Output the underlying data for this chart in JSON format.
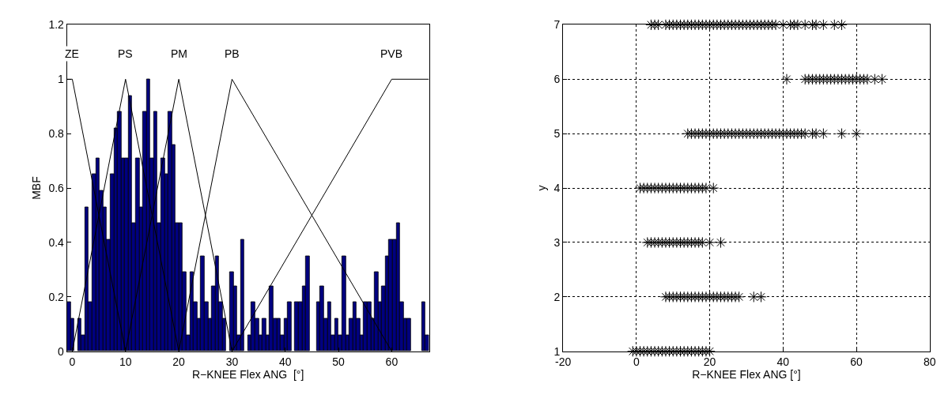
{
  "chart_data": [
    {
      "type": "histogram",
      "xlabel": "R−KNEE Flex ANG  [°]",
      "ylabel": "MBF",
      "color": "#000080",
      "bins": [
        -1,
        -0.32,
        0.36,
        1.04,
        1.72,
        2.4,
        3.08,
        3.76,
        4.44,
        5.12,
        5.8,
        6.48,
        7.16,
        7.84,
        8.52,
        9.2,
        9.88,
        10.56,
        11.24,
        11.92,
        12.6,
        13.28,
        13.96,
        14.64,
        15.32,
        16,
        16.68,
        17.36,
        18.04,
        18.72,
        19.4,
        20.08,
        20.76,
        21.44,
        22.12,
        22.8,
        23.48,
        24.16,
        24.84,
        25.52,
        26.2,
        26.88,
        27.56,
        28.24,
        28.92,
        29.6,
        30.28,
        30.96,
        31.64,
        32.32,
        33,
        33.68,
        34.36,
        35.04,
        35.72,
        36.4,
        37.08,
        37.76,
        38.44,
        39.12,
        39.8,
        40.48,
        41.16,
        41.84,
        42.52,
        43.2,
        43.88,
        44.56,
        45.24,
        45.92,
        46.6,
        47.28,
        47.96,
        48.64,
        49.32,
        50,
        50.68,
        51.36,
        52.04,
        52.72,
        53.4,
        54.08,
        54.76,
        55.44,
        56.12,
        56.8,
        57.48,
        58.16,
        58.84,
        59.52,
        60.2,
        60.88,
        61.56,
        62.24,
        62.92,
        63.6,
        64.28,
        64.96,
        65.64,
        66.32,
        67
      ],
      "values": [
        0.18,
        0.12,
        0,
        0.12,
        0.06,
        0.53,
        0.18,
        0.65,
        0.71,
        0.59,
        0.53,
        0.41,
        0.65,
        0.82,
        0.88,
        0.71,
        0.71,
        0.94,
        0.47,
        0.71,
        0.53,
        0.88,
        1,
        0.71,
        0.88,
        0.47,
        0.71,
        0.65,
        0.88,
        0.76,
        0.47,
        0.47,
        0.29,
        0.06,
        0.29,
        0.18,
        0.12,
        0.35,
        0.18,
        0.12,
        0.24,
        0.35,
        0.18,
        0.12,
        0,
        0.29,
        0.24,
        0.06,
        0.41,
        0,
        0.06,
        0.18,
        0.12,
        0.06,
        0.12,
        0.06,
        0.24,
        0.12,
        0.12,
        0.06,
        0.12,
        0.18,
        0,
        0.18,
        0.18,
        0.24,
        0.35,
        0,
        0,
        0.18,
        0.24,
        0.12,
        0.18,
        0.06,
        0.12,
        0.06,
        0.35,
        0.06,
        0.12,
        0.18,
        0.12,
        0.06,
        0.18,
        0.18,
        0.12,
        0.29,
        0.18,
        0.24,
        0.35,
        0.41,
        0.41,
        0.47,
        0.18,
        0.12,
        0.12,
        0,
        0,
        0,
        0.18,
        0.06
      ],
      "series": [
        {
          "name": "ZE",
          "type": "line",
          "color": "#000000",
          "x": [
            -1,
            0,
            10
          ],
          "values": [
            1,
            1,
            0
          ]
        },
        {
          "name": "PS",
          "type": "line",
          "color": "#000000",
          "x": [
            0,
            10,
            20
          ],
          "values": [
            0,
            1,
            0
          ]
        },
        {
          "name": "PM",
          "type": "line",
          "color": "#000000",
          "x": [
            10,
            20,
            30
          ],
          "values": [
            0,
            1,
            0
          ]
        },
        {
          "name": "PB",
          "type": "line",
          "color": "#000000",
          "x": [
            20,
            30,
            60
          ],
          "values": [
            0,
            1,
            0
          ]
        },
        {
          "name": "PVB",
          "type": "line",
          "color": "#000000",
          "x": [
            30,
            60,
            67
          ],
          "values": [
            0,
            1,
            1
          ]
        }
      ],
      "xlim": [
        -1,
        67
      ],
      "xticks": [
        0,
        10,
        20,
        30,
        40,
        50,
        60
      ],
      "ylim": [
        0,
        1.2
      ],
      "yticks": [
        0,
        0.2,
        0.4,
        0.6,
        0.8,
        1,
        1.2
      ],
      "grid": false
    },
    {
      "type": "scatter",
      "xlabel": "R−KNEE Flex ANG [°]",
      "ylabel": "y",
      "color": "#000000",
      "marker": "cross",
      "x": [
        4,
        5,
        6,
        8,
        9,
        10,
        11,
        12,
        13,
        14,
        15,
        16,
        17,
        18,
        19,
        20,
        21,
        22,
        23,
        24,
        25,
        26,
        27,
        28,
        29,
        30,
        31,
        32,
        33,
        34,
        35,
        36,
        37,
        38,
        40,
        42,
        43,
        44,
        46,
        48,
        49,
        51,
        54,
        56,
        41,
        46,
        47,
        48,
        49,
        50,
        51,
        52,
        53,
        54,
        55,
        56,
        57,
        58,
        59,
        60,
        61,
        62,
        63,
        65,
        67,
        14,
        15,
        16,
        17,
        18,
        19,
        20,
        21,
        22,
        23,
        24,
        25,
        26,
        27,
        28,
        29,
        30,
        31,
        32,
        33,
        34,
        35,
        36,
        37,
        38,
        39,
        40,
        41,
        42,
        43,
        44,
        45,
        46,
        48,
        49,
        51,
        56,
        60,
        1,
        2,
        3,
        4,
        5,
        6,
        7,
        8,
        9,
        10,
        11,
        12,
        13,
        14,
        15,
        16,
        17,
        18,
        19,
        21,
        3,
        4,
        5,
        6,
        7,
        8,
        9,
        10,
        11,
        12,
        13,
        14,
        15,
        16,
        17,
        18,
        20,
        23,
        8,
        9,
        10,
        11,
        12,
        13,
        14,
        15,
        16,
        17,
        18,
        19,
        20,
        21,
        22,
        23,
        24,
        25,
        26,
        27,
        28,
        32,
        34,
        -1,
        0,
        1,
        2,
        3,
        4,
        5,
        6,
        7,
        8,
        9,
        10,
        11,
        12,
        13,
        14,
        15,
        16,
        17,
        18,
        19,
        20
      ],
      "values": [
        7,
        7,
        7,
        7,
        7,
        7,
        7,
        7,
        7,
        7,
        7,
        7,
        7,
        7,
        7,
        7,
        7,
        7,
        7,
        7,
        7,
        7,
        7,
        7,
        7,
        7,
        7,
        7,
        7,
        7,
        7,
        7,
        7,
        7,
        7,
        7,
        7,
        7,
        7,
        7,
        7,
        7,
        7,
        7,
        6,
        6,
        6,
        6,
        6,
        6,
        6,
        6,
        6,
        6,
        6,
        6,
        6,
        6,
        6,
        6,
        6,
        6,
        6,
        6,
        6,
        5,
        5,
        5,
        5,
        5,
        5,
        5,
        5,
        5,
        5,
        5,
        5,
        5,
        5,
        5,
        5,
        5,
        5,
        5,
        5,
        5,
        5,
        5,
        5,
        5,
        5,
        5,
        5,
        5,
        5,
        5,
        5,
        5,
        5,
        5,
        5,
        5,
        5,
        4,
        4,
        4,
        4,
        4,
        4,
        4,
        4,
        4,
        4,
        4,
        4,
        4,
        4,
        4,
        4,
        4,
        4,
        4,
        4,
        3,
        3,
        3,
        3,
        3,
        3,
        3,
        3,
        3,
        3,
        3,
        3,
        3,
        3,
        3,
        3,
        3,
        3,
        2,
        2,
        2,
        2,
        2,
        2,
        2,
        2,
        2,
        2,
        2,
        2,
        2,
        2,
        2,
        2,
        2,
        2,
        2,
        2,
        2,
        2,
        2,
        1,
        1,
        1,
        1,
        1,
        1,
        1,
        1,
        1,
        1,
        1,
        1,
        1,
        1,
        1,
        1,
        1,
        1,
        1,
        1,
        1,
        1
      ],
      "xlim": [
        -20,
        80
      ],
      "xticks": [
        -20,
        0,
        20,
        40,
        60,
        80
      ],
      "ylim": [
        1,
        7
      ],
      "yticks": [
        1,
        2,
        3,
        4,
        5,
        6,
        7
      ],
      "grid": true
    }
  ]
}
